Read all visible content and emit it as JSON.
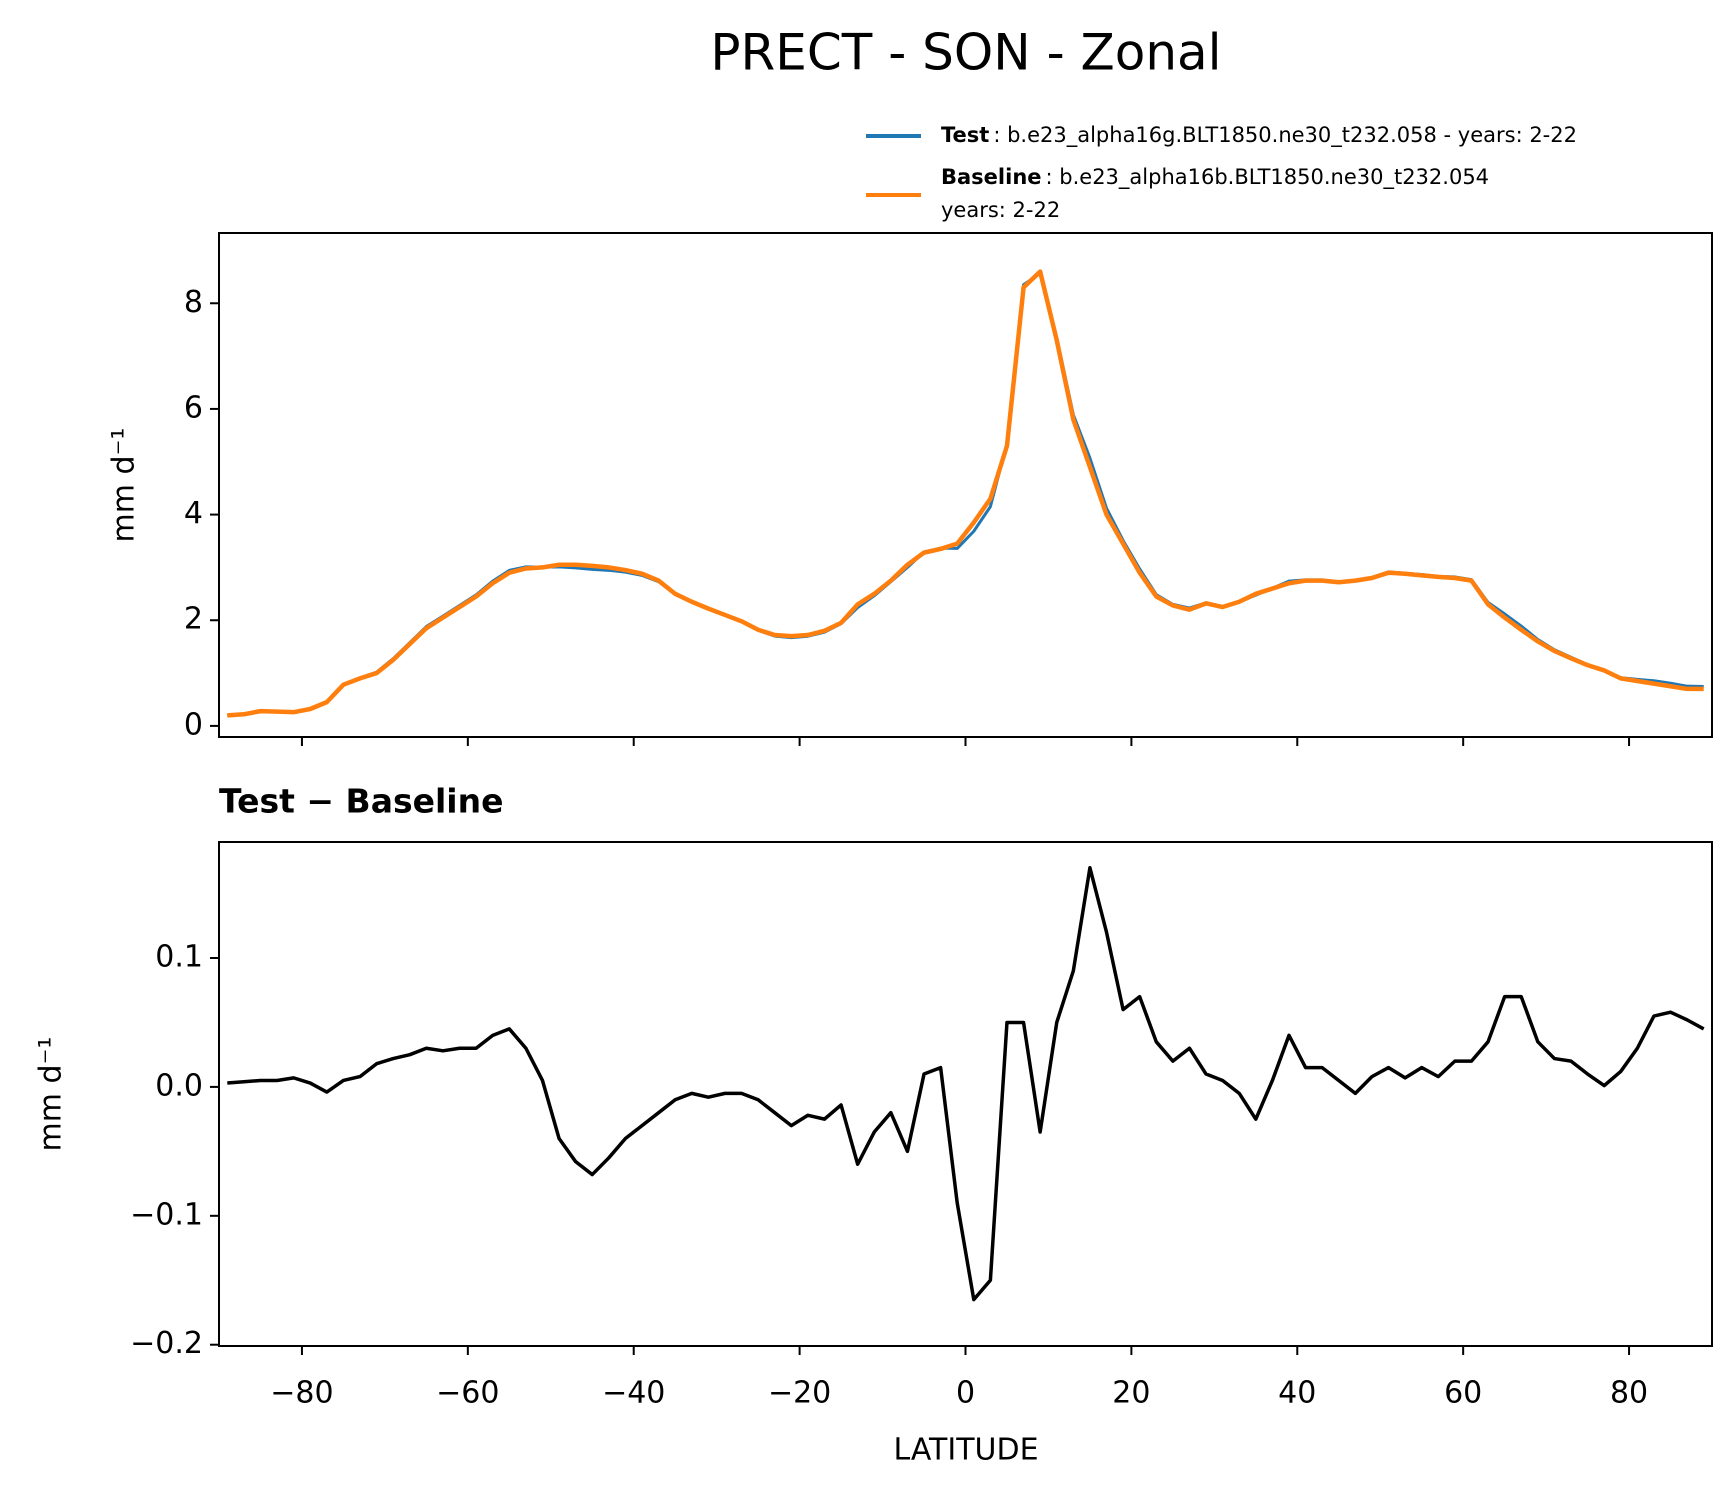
{
  "chart_data": [
    {
      "type": "line",
      "title": "PRECT - SON - Zonal",
      "ylabel": "mm d⁻¹",
      "x": [
        -89,
        -87,
        -85,
        -83,
        -81,
        -79,
        -77,
        -75,
        -73,
        -71,
        -69,
        -67,
        -65,
        -63,
        -61,
        -59,
        -57,
        -55,
        -53,
        -51,
        -49,
        -47,
        -45,
        -43,
        -41,
        -39,
        -37,
        -35,
        -33,
        -31,
        -29,
        -27,
        -25,
        -23,
        -21,
        -19,
        -17,
        -15,
        -13,
        -11,
        -9,
        -7,
        -5,
        -3,
        -1,
        1,
        3,
        5,
        7,
        9,
        11,
        13,
        15,
        17,
        19,
        21,
        23,
        25,
        27,
        29,
        31,
        33,
        35,
        37,
        39,
        41,
        43,
        45,
        47,
        49,
        51,
        53,
        55,
        57,
        59,
        61,
        63,
        65,
        67,
        69,
        71,
        73,
        75,
        77,
        79,
        81,
        83,
        85,
        87,
        89
      ],
      "series": [
        {
          "name": "Test",
          "description": [
            ": b.e23_alpha16g.BLT1850.ne30_t232.058 - years: 2-22"
          ],
          "color": "#1f77b4",
          "values": [
            0.203,
            0.224,
            0.285,
            0.275,
            0.267,
            0.323,
            0.446,
            0.785,
            0.908,
            1.018,
            1.272,
            1.575,
            1.88,
            2.078,
            2.28,
            2.48,
            2.74,
            2.945,
            3.01,
            3.005,
            3.01,
            2.992,
            2.962,
            2.945,
            2.91,
            2.85,
            2.73,
            2.49,
            2.345,
            2.212,
            2.095,
            1.975,
            1.81,
            1.7,
            1.67,
            1.698,
            1.775,
            1.936,
            2.24,
            2.465,
            2.73,
            3.0,
            3.29,
            3.365,
            3.36,
            3.685,
            4.15,
            5.35,
            8.35,
            8.565,
            7.35,
            5.89,
            5.07,
            4.12,
            3.51,
            2.97,
            2.485,
            2.3,
            2.23,
            2.33,
            2.255,
            2.345,
            2.475,
            2.605,
            2.74,
            2.765,
            2.765,
            2.725,
            2.745,
            2.808,
            2.915,
            2.887,
            2.865,
            2.828,
            2.82,
            2.77,
            2.335,
            2.12,
            1.89,
            1.635,
            1.442,
            1.3,
            1.16,
            1.051,
            0.912,
            0.88,
            0.855,
            0.808,
            0.752,
            0.745
          ]
        },
        {
          "name": "Baseline",
          "description": [
            ": b.e23_alpha16b.BLT1850.ne30_t232.054",
            "years: 2-22"
          ],
          "color": "#ff7f0e",
          "values": [
            0.2,
            0.22,
            0.28,
            0.27,
            0.26,
            0.32,
            0.45,
            0.78,
            0.9,
            1.0,
            1.25,
            1.55,
            1.85,
            2.05,
            2.25,
            2.45,
            2.7,
            2.9,
            2.98,
            3.0,
            3.05,
            3.05,
            3.03,
            3.0,
            2.95,
            2.88,
            2.75,
            2.5,
            2.35,
            2.22,
            2.1,
            1.98,
            1.82,
            1.72,
            1.7,
            1.72,
            1.8,
            1.95,
            2.3,
            2.5,
            2.75,
            3.05,
            3.28,
            3.35,
            3.45,
            3.85,
            4.3,
            5.3,
            8.3,
            8.6,
            7.3,
            5.8,
            4.9,
            4.0,
            3.45,
            2.9,
            2.45,
            2.28,
            2.2,
            2.32,
            2.25,
            2.35,
            2.5,
            2.6,
            2.7,
            2.75,
            2.75,
            2.72,
            2.75,
            2.8,
            2.9,
            2.88,
            2.85,
            2.82,
            2.8,
            2.75,
            2.3,
            2.05,
            1.82,
            1.6,
            1.42,
            1.28,
            1.15,
            1.05,
            0.9,
            0.85,
            0.8,
            0.75,
            0.7,
            0.7
          ]
        }
      ],
      "xlim": [
        -90,
        90
      ],
      "xticks": [
        -80,
        -60,
        -40,
        -20,
        0,
        20,
        40,
        60,
        80
      ],
      "ylim": [
        -0.21,
        9.33
      ],
      "yticks": [
        0,
        2,
        4,
        6,
        8
      ]
    },
    {
      "type": "line",
      "subtitle": "Test − Baseline",
      "ylabel": "mm d⁻¹",
      "xlabel": "LATITUDE",
      "x": [
        -89,
        -87,
        -85,
        -83,
        -81,
        -79,
        -77,
        -75,
        -73,
        -71,
        -69,
        -67,
        -65,
        -63,
        -61,
        -59,
        -57,
        -55,
        -53,
        -51,
        -49,
        -47,
        -45,
        -43,
        -41,
        -39,
        -37,
        -35,
        -33,
        -31,
        -29,
        -27,
        -25,
        -23,
        -21,
        -19,
        -17,
        -15,
        -13,
        -11,
        -9,
        -7,
        -5,
        -3,
        -1,
        1,
        3,
        5,
        7,
        9,
        11,
        13,
        15,
        17,
        19,
        21,
        23,
        25,
        27,
        29,
        31,
        33,
        35,
        37,
        39,
        41,
        43,
        45,
        47,
        49,
        51,
        53,
        55,
        57,
        59,
        61,
        63,
        65,
        67,
        69,
        71,
        73,
        75,
        77,
        79,
        81,
        83,
        85,
        87,
        89
      ],
      "series": [
        {
          "color": "#000000",
          "values": [
            0.003,
            0.004,
            0.005,
            0.005,
            0.007,
            0.003,
            -0.004,
            0.005,
            0.008,
            0.018,
            0.022,
            0.025,
            0.03,
            0.028,
            0.03,
            0.03,
            0.04,
            0.045,
            0.03,
            0.005,
            -0.04,
            -0.058,
            -0.068,
            -0.055,
            -0.04,
            -0.03,
            -0.02,
            -0.01,
            -0.005,
            -0.008,
            -0.005,
            -0.005,
            -0.01,
            -0.02,
            -0.03,
            -0.022,
            -0.025,
            -0.014,
            -0.06,
            -0.035,
            -0.02,
            -0.05,
            0.01,
            0.015,
            -0.09,
            -0.165,
            -0.15,
            0.05,
            0.05,
            -0.035,
            0.05,
            0.09,
            0.17,
            0.12,
            0.06,
            0.07,
            0.035,
            0.02,
            0.03,
            0.01,
            0.005,
            -0.005,
            -0.025,
            0.005,
            0.04,
            0.015,
            0.015,
            0.005,
            -0.005,
            0.008,
            0.015,
            0.007,
            0.015,
            0.008,
            0.02,
            0.02,
            0.035,
            0.07,
            0.07,
            0.035,
            0.022,
            0.02,
            0.01,
            0.001,
            0.012,
            0.03,
            0.055,
            0.058,
            0.052,
            0.045
          ]
        }
      ],
      "xlim": [
        -90,
        90
      ],
      "xticks": [
        {
          "value": -80,
          "label": "−80"
        },
        {
          "value": -60,
          "label": "−60"
        },
        {
          "value": -40,
          "label": "−40"
        },
        {
          "value": -20,
          "label": "−20"
        },
        0,
        20,
        40,
        60,
        80
      ],
      "ylim": [
        -0.201,
        0.19
      ],
      "yticks": [
        {
          "value": -0.2,
          "label": "−0.2"
        },
        {
          "value": -0.1,
          "label": "−0.1"
        },
        {
          "value": 0,
          "label": "0.0"
        },
        {
          "value": 0.1,
          "label": "0.1"
        }
      ]
    }
  ]
}
